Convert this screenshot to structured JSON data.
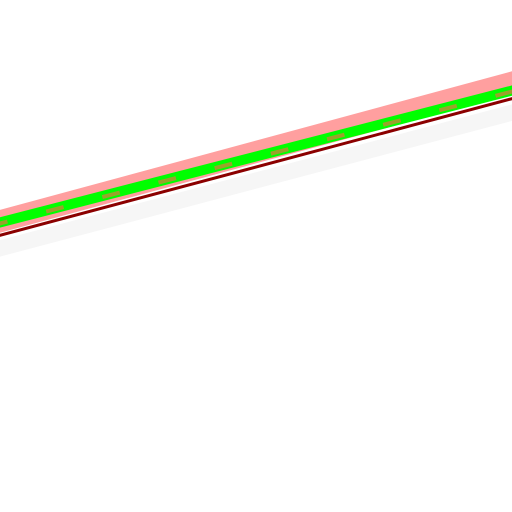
{
  "map": {
    "background_color": "#ffffff",
    "layers": [
      {
        "name": "road-shadow",
        "color": "#f6f6f6"
      },
      {
        "name": "road-casing",
        "color": "#ff9f9f"
      },
      {
        "name": "road-edge-line",
        "color": "#8b0000"
      },
      {
        "name": "route-highlight",
        "color": "#00ff00"
      },
      {
        "name": "route-dash",
        "color": "#9aa22b",
        "style": "dashed"
      }
    ]
  }
}
